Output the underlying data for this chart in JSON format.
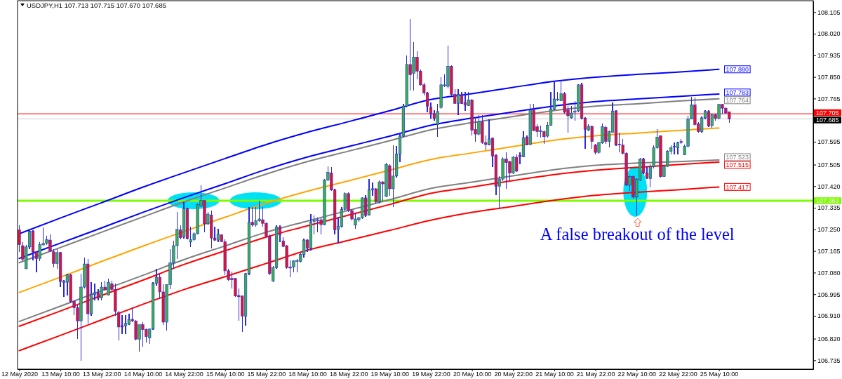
{
  "chart_data": {
    "type": "candlestick",
    "title": "USDJPY,H1 107.713 107.715 107.670 107.685",
    "categories": [
      "12 May 2020",
      null,
      null,
      null,
      null,
      null,
      null,
      null,
      null,
      null,
      null,
      null,
      "13 May 10:00",
      null,
      null,
      null,
      null,
      null,
      null,
      null,
      null,
      null,
      null,
      null,
      "13 May 22:00",
      null,
      null,
      null,
      null,
      null,
      null,
      null,
      null,
      null,
      null,
      null,
      "14 May 10:00",
      null,
      null,
      null,
      null,
      null,
      null,
      null,
      null,
      null,
      null,
      null,
      "14 May 22:00",
      null,
      null,
      null,
      null,
      null,
      null,
      null,
      null,
      null,
      null,
      null,
      "15 May 10:00",
      null,
      null,
      null,
      null,
      null,
      null,
      null,
      null,
      null,
      null,
      null,
      "15 May 22:00",
      null,
      null,
      null,
      null,
      null,
      null,
      null,
      null,
      null,
      null,
      null,
      "18 May 10:00",
      null,
      null,
      null,
      null,
      null,
      null,
      null,
      null,
      null,
      null,
      null,
      "18 May 22:00",
      null,
      null,
      null,
      null,
      null,
      null,
      null,
      null,
      null,
      null,
      null,
      "19 May 10:00",
      null,
      null,
      null,
      null,
      null,
      null,
      null,
      null,
      null,
      null,
      null,
      "19 May 22:00",
      null,
      null,
      null,
      null,
      null,
      null,
      null,
      null,
      null,
      null,
      null,
      "20 May 10:00",
      null,
      null,
      null,
      null,
      null,
      null,
      null,
      null,
      null,
      null,
      null,
      "20 May 22:00",
      null,
      null,
      null,
      null,
      null,
      null,
      null,
      null,
      null,
      null,
      null,
      "21 May 10:00",
      null,
      null,
      null,
      null,
      null,
      null,
      null,
      null,
      null,
      null,
      null,
      "21 May 22:00",
      null,
      null,
      null,
      null,
      null,
      null,
      null,
      null,
      null,
      null,
      null,
      "22 May 10:00",
      null,
      null,
      null,
      null,
      null,
      null,
      null,
      null,
      null,
      null,
      null,
      "22 May 22:00",
      null,
      null,
      null,
      null,
      null,
      null,
      null,
      null,
      null,
      null,
      null,
      "25 May 10:00",
      null,
      null,
      null,
      null,
      null,
      null,
      null,
      null,
      null,
      null,
      null,
      null,
      null,
      null,
      null,
      null,
      null,
      null,
      null,
      null,
      null,
      null,
      null,
      null,
      null,
      null,
      null
    ],
    "ohlc": [
      [
        107.248,
        107.267,
        107.162,
        107.19
      ],
      [
        107.186,
        107.2,
        107.124,
        107.133
      ],
      [
        107.095,
        107.19,
        107.095,
        107.181
      ],
      [
        107.181,
        107.253,
        107.171,
        107.243
      ],
      [
        107.243,
        107.248,
        107.128,
        107.162
      ],
      [
        107.162,
        107.162,
        107.081,
        107.135
      ],
      [
        107.135,
        107.2,
        107.124,
        107.19
      ],
      [
        107.189,
        107.257,
        107.186,
        107.195
      ],
      [
        107.195,
        107.224,
        107.19,
        107.21
      ],
      [
        107.208,
        107.229,
        107.162,
        107.164
      ],
      [
        107.162,
        107.171,
        107.1,
        107.116
      ],
      [
        107.116,
        107.171,
        107.095,
        107.159
      ],
      [
        107.159,
        107.162,
        107.023,
        107.045
      ],
      [
        107.042,
        107.052,
        106.985,
        107.047
      ],
      [
        107.042,
        107.076,
        106.99,
        107.071
      ],
      [
        107.071,
        107.076,
        106.961,
        106.966
      ],
      [
        106.966,
        106.971,
        106.914,
        106.942
      ],
      [
        106.942,
        106.952,
        106.818,
        106.89
      ],
      [
        106.89,
        107.076,
        106.732,
        107.023
      ],
      [
        107.023,
        107.138,
        107.019,
        107.114
      ],
      [
        107.114,
        107.133,
        106.88,
        106.918
      ],
      [
        106.918,
        107.042,
        106.909,
        106.995
      ],
      [
        106.995,
        107.038,
        106.971,
        107.001
      ],
      [
        107.001,
        107.014,
        106.971,
        106.979
      ],
      [
        106.98,
        107.042,
        106.971,
        107.023
      ],
      [
        107.023,
        107.047,
        107.009,
        107.012
      ],
      [
        106.992,
        107.057,
        106.99,
        107.042
      ],
      [
        107.036,
        107.047,
        107.009,
        107.014
      ],
      [
        107.014,
        107.038,
        106.909,
        106.928
      ],
      [
        106.923,
        106.928,
        106.813,
        106.866
      ],
      [
        106.871,
        106.914,
        106.837,
        106.866
      ],
      [
        106.871,
        106.914,
        106.837,
        106.88
      ],
      [
        106.877,
        106.918,
        106.875,
        106.896
      ],
      [
        106.896,
        106.942,
        106.885,
        106.89
      ],
      [
        106.89,
        106.894,
        106.813,
        106.818
      ],
      [
        106.818,
        106.875,
        106.77,
        106.875
      ],
      [
        106.875,
        106.885,
        106.789,
        106.856
      ],
      [
        106.856,
        106.861,
        106.804,
        106.828
      ],
      [
        106.823,
        106.861,
        106.799,
        106.858
      ],
      [
        106.858,
        107.042,
        106.856,
        107.038
      ],
      [
        107.038,
        107.095,
        107.028,
        107.062
      ],
      [
        107.062,
        107.076,
        106.976,
        107.004
      ],
      [
        107.004,
        107.033,
        106.875,
        106.885
      ],
      [
        106.885,
        107.033,
        106.851,
        107.033
      ],
      [
        107.033,
        107.171,
        107.014,
        107.119
      ],
      [
        107.119,
        107.205,
        107.095,
        107.186
      ],
      [
        107.186,
        107.319,
        107.133,
        107.25
      ],
      [
        107.248,
        107.267,
        107.21,
        107.217
      ],
      [
        107.221,
        107.358,
        107.214,
        107.332
      ],
      [
        107.332,
        107.334,
        107.21,
        107.214
      ],
      [
        107.2,
        107.262,
        107.181,
        107.21
      ],
      [
        107.21,
        107.238,
        107.205,
        107.233
      ],
      [
        107.233,
        107.353,
        107.229,
        107.348
      ],
      [
        107.343,
        107.424,
        107.338,
        107.364
      ],
      [
        107.364,
        107.364,
        107.238,
        107.272
      ],
      [
        107.272,
        107.319,
        107.267,
        107.31
      ],
      [
        107.307,
        107.324,
        107.176,
        107.216
      ],
      [
        107.216,
        107.262,
        107.205,
        107.208
      ],
      [
        107.208,
        107.253,
        107.2,
        107.231
      ],
      [
        107.229,
        107.231,
        107.2,
        107.202
      ],
      [
        107.202,
        107.21,
        107.071,
        107.087
      ],
      [
        107.087,
        107.095,
        107.047,
        107.052
      ],
      [
        107.057,
        107.085,
        107.019,
        107.052
      ],
      [
        107.057,
        107.059,
        106.985,
        106.988
      ],
      [
        106.99,
        107.019,
        106.89,
        106.985
      ],
      [
        106.988,
        106.99,
        106.847,
        106.909
      ],
      [
        106.909,
        107.078,
        106.871,
        107.076
      ],
      [
        107.076,
        107.338,
        107.071,
        107.278
      ],
      [
        107.278,
        107.338,
        107.262,
        107.267
      ],
      [
        107.267,
        107.338,
        107.262,
        107.284
      ],
      [
        107.284,
        107.364,
        107.281,
        107.291
      ],
      [
        107.288,
        107.338,
        107.262,
        107.274
      ],
      [
        107.274,
        107.276,
        107.219,
        107.224
      ],
      [
        107.224,
        107.229,
        107.071,
        107.076
      ],
      [
        107.047,
        107.105,
        107.042,
        107.1
      ],
      [
        107.1,
        107.267,
        107.095,
        107.259
      ],
      [
        107.259,
        107.267,
        107.2,
        107.229
      ],
      [
        107.205,
        107.219,
        107.181,
        107.183
      ],
      [
        107.186,
        107.19,
        107.095,
        107.1
      ],
      [
        107.102,
        107.128,
        107.062,
        107.098
      ],
      [
        107.102,
        107.128,
        107.081,
        107.126
      ],
      [
        107.124,
        107.135,
        107.081,
        107.128
      ],
      [
        107.124,
        107.162,
        107.119,
        107.152
      ],
      [
        107.152,
        107.214,
        107.138,
        107.208
      ],
      [
        107.208,
        107.21,
        107.162,
        107.176
      ],
      [
        107.176,
        107.31,
        107.167,
        107.278
      ],
      [
        107.281,
        107.305,
        107.229,
        107.286
      ],
      [
        107.283,
        107.296,
        107.238,
        107.288
      ],
      [
        107.288,
        107.296,
        107.229,
        107.269
      ],
      [
        107.269,
        107.448,
        107.267,
        107.444
      ],
      [
        107.444,
        107.498,
        107.439,
        107.475
      ],
      [
        107.472,
        107.496,
        107.401,
        107.405
      ],
      [
        107.405,
        107.41,
        107.229,
        107.248
      ],
      [
        107.25,
        107.296,
        107.195,
        107.262
      ],
      [
        107.262,
        107.338,
        107.257,
        107.329
      ],
      [
        107.329,
        107.396,
        107.324,
        107.391
      ],
      [
        107.391,
        107.396,
        107.319,
        107.324
      ],
      [
        107.324,
        107.329,
        107.286,
        107.291
      ],
      [
        107.267,
        107.315,
        107.253,
        107.291
      ],
      [
        107.288,
        107.3,
        107.281,
        107.296
      ],
      [
        107.296,
        107.377,
        107.291,
        107.374
      ],
      [
        107.374,
        107.386,
        107.3,
        107.305
      ],
      [
        107.307,
        107.448,
        107.305,
        107.405
      ],
      [
        107.405,
        107.434,
        107.381,
        107.41
      ],
      [
        107.41,
        107.412,
        107.353,
        107.358
      ],
      [
        107.358,
        107.444,
        107.353,
        107.437
      ],
      [
        107.437,
        107.441,
        107.362,
        107.429
      ],
      [
        107.38,
        107.513,
        107.377,
        107.506
      ],
      [
        107.501,
        107.506,
        107.381,
        107.41
      ],
      [
        107.41,
        107.582,
        107.338,
        107.46
      ],
      [
        107.46,
        107.577,
        107.453,
        107.546
      ],
      [
        107.546,
        107.63,
        107.515,
        107.617
      ],
      [
        107.617,
        107.744,
        107.615,
        107.735
      ],
      [
        107.735,
        107.935,
        107.73,
        107.899
      ],
      [
        107.899,
        108.079,
        107.797,
        107.859
      ],
      [
        107.864,
        107.988,
        107.797,
        107.928
      ],
      [
        107.928,
        107.95,
        107.84,
        107.873
      ],
      [
        107.873,
        107.878,
        107.816,
        107.819
      ],
      [
        107.819,
        107.826,
        107.778,
        107.787
      ],
      [
        107.787,
        107.792,
        107.711,
        107.735
      ],
      [
        107.73,
        107.749,
        107.687,
        107.706
      ],
      [
        107.706,
        107.72,
        107.678,
        107.687
      ],
      [
        107.663,
        107.744,
        107.615,
        107.714
      ],
      [
        107.73,
        107.848,
        107.725,
        107.819
      ],
      [
        107.815,
        107.859,
        107.811,
        107.819
      ],
      [
        107.813,
        107.974,
        107.806,
        107.892
      ],
      [
        107.892,
        107.897,
        107.778,
        107.781
      ],
      [
        107.781,
        107.802,
        107.744,
        107.746
      ],
      [
        107.746,
        107.802,
        107.701,
        107.781
      ],
      [
        107.778,
        107.792,
        107.744,
        107.746
      ],
      [
        107.749,
        107.792,
        107.716,
        107.74
      ],
      [
        107.737,
        107.792,
        107.735,
        107.759
      ],
      [
        107.759,
        107.763,
        107.62,
        107.641
      ],
      [
        107.643,
        107.692,
        107.596,
        107.625
      ],
      [
        107.625,
        107.699,
        107.62,
        107.673
      ],
      [
        107.673,
        107.701,
        107.587,
        107.592
      ],
      [
        107.592,
        107.62,
        107.563,
        107.584
      ],
      [
        107.584,
        107.682,
        107.582,
        107.606
      ],
      [
        107.609,
        107.611,
        107.496,
        107.539
      ],
      [
        107.542,
        107.544,
        107.386,
        107.42
      ],
      [
        107.42,
        107.46,
        107.329,
        107.448
      ],
      [
        107.448,
        107.534,
        107.441,
        107.527
      ],
      [
        107.527,
        107.553,
        107.41,
        107.513
      ],
      [
        107.517,
        107.52,
        107.439,
        107.472
      ],
      [
        107.472,
        107.539,
        107.467,
        107.534
      ],
      [
        107.534,
        107.544,
        107.477,
        107.479
      ],
      [
        107.542,
        107.553,
        107.506,
        107.536
      ],
      [
        107.536,
        107.635,
        107.534,
        107.611
      ],
      [
        107.613,
        107.62,
        107.582,
        107.584
      ],
      [
        107.584,
        107.744,
        107.582,
        107.72
      ],
      [
        107.72,
        107.744,
        107.635,
        107.639
      ],
      [
        107.654,
        107.663,
        107.615,
        107.635
      ],
      [
        107.635,
        107.658,
        107.611,
        107.639
      ],
      [
        107.635,
        107.639,
        107.587,
        107.615
      ],
      [
        107.617,
        107.673,
        107.611,
        107.66
      ],
      [
        107.66,
        107.792,
        107.658,
        107.723
      ],
      [
        107.723,
        107.835,
        107.72,
        107.763
      ],
      [
        107.759,
        107.792,
        107.754,
        107.763
      ],
      [
        107.756,
        107.837,
        107.754,
        107.784
      ],
      [
        107.784,
        107.792,
        107.706,
        107.711
      ],
      [
        107.72,
        107.735,
        107.63,
        107.697
      ],
      [
        107.689,
        107.735,
        107.687,
        107.708
      ],
      [
        107.711,
        107.754,
        107.678,
        107.716
      ],
      [
        107.716,
        107.821,
        107.711,
        107.819
      ],
      [
        107.819,
        107.826,
        107.682,
        107.687
      ],
      [
        107.687,
        107.692,
        107.568,
        107.644
      ],
      [
        107.641,
        107.663,
        107.635,
        107.656
      ],
      [
        107.656,
        107.658,
        107.568,
        107.596
      ],
      [
        107.582,
        107.587,
        107.544,
        107.553
      ],
      [
        107.553,
        107.596,
        107.549,
        107.592
      ],
      [
        107.59,
        107.666,
        107.587,
        107.654
      ],
      [
        107.651,
        107.658,
        107.587,
        107.596
      ],
      [
        107.596,
        107.639,
        107.572,
        107.635
      ],
      [
        107.632,
        107.749,
        107.63,
        107.716
      ],
      [
        107.716,
        107.718,
        107.577,
        107.582
      ],
      [
        107.585,
        107.63,
        107.553,
        107.582
      ],
      [
        107.582,
        107.606,
        107.544,
        107.549
      ],
      [
        107.549,
        107.553,
        107.42,
        107.424
      ],
      [
        107.424,
        107.463,
        107.401,
        107.458
      ],
      [
        107.458,
        107.463,
        107.372,
        107.377
      ],
      [
        107.377,
        107.45,
        107.305,
        107.448
      ],
      [
        107.444,
        107.53,
        107.439,
        107.527
      ],
      [
        107.527,
        107.53,
        107.467,
        107.472
      ],
      [
        107.472,
        107.496,
        107.448,
        107.453
      ],
      [
        107.45,
        107.506,
        107.415,
        107.496
      ],
      [
        107.496,
        107.582,
        107.491,
        107.571
      ],
      [
        107.571,
        107.644,
        107.568,
        107.613
      ],
      [
        107.618,
        107.62,
        107.453,
        107.458
      ],
      [
        107.458,
        107.501,
        107.456,
        107.498
      ],
      [
        107.498,
        107.563,
        107.496,
        107.558
      ],
      [
        107.558,
        107.582,
        107.544,
        107.572
      ],
      [
        107.574,
        107.592,
        107.544,
        107.577
      ],
      [
        107.571,
        107.596,
        107.544,
        107.59
      ],
      [
        107.596,
        107.606,
        107.587,
        107.592
      ],
      [
        107.544,
        107.584,
        107.542,
        107.577
      ],
      [
        107.577,
        107.697,
        107.572,
        107.685
      ],
      [
        107.685,
        107.771,
        107.682,
        107.74
      ],
      [
        107.74,
        107.768,
        107.658,
        107.663
      ],
      [
        107.666,
        107.673,
        107.63,
        107.635
      ],
      [
        107.635,
        107.695,
        107.632,
        107.689
      ],
      [
        107.689,
        107.72,
        107.682,
        107.714
      ],
      [
        107.714,
        107.72,
        107.654,
        107.658
      ],
      [
        107.658,
        107.706,
        107.649,
        107.701
      ],
      [
        107.701,
        107.706,
        107.678,
        107.687
      ],
      [
        107.687,
        107.744,
        107.682,
        107.742
      ],
      [
        107.742,
        107.744,
        107.706,
        107.727
      ],
      [
        107.727,
        107.73,
        107.706,
        107.708
      ],
      [
        107.713,
        107.715,
        107.67,
        107.685
      ],
      null,
      null,
      null,
      null,
      null,
      null,
      null,
      null,
      null,
      null,
      null,
      null,
      null,
      null,
      null,
      null,
      null,
      null,
      null,
      null,
      null,
      null,
      null,
      null
    ],
    "series": [
      {
        "type": "line",
        "color": "#0000ff",
        "x": [
          "12 May 2020",
          "13 May 10:00",
          "13 May 22:00",
          "14 May 10:00",
          "14 May 22:00",
          "15 May 10:00",
          "15 May 22:00",
          "18 May 10:00",
          "18 May 22:00",
          "19 May 10:00",
          "19 May 22:00",
          "20 May 10:00",
          "20 May 22:00",
          "21 May 10:00",
          "21 May 22:00",
          "22 May 10:00",
          "22 May 22:00",
          "25 May 10:00"
        ],
        "values": [
          107.233,
          107.295,
          107.355,
          107.416,
          107.473,
          107.529,
          107.584,
          107.632,
          107.674,
          107.717,
          107.761,
          107.784,
          107.809,
          107.833,
          107.849,
          107.86,
          107.869,
          107.88
        ],
        "value_labels": [
          null,
          null,
          null,
          null,
          null,
          null,
          null,
          null,
          null,
          null,
          null,
          null,
          null,
          null,
          null,
          null,
          null,
          "107.880"
        ]
      },
      {
        "type": "line",
        "color": "#0000ff",
        "x": [
          "12 May 2020",
          "13 May 10:00",
          "13 May 22:00",
          "14 May 10:00",
          "14 May 22:00",
          "15 May 10:00",
          "15 May 22:00",
          "18 May 10:00",
          "18 May 22:00",
          "19 May 10:00",
          "19 May 22:00",
          "20 May 10:00",
          "20 May 22:00",
          "21 May 10:00",
          "21 May 22:00",
          "22 May 10:00",
          "22 May 22:00",
          "25 May 10:00"
        ],
        "values": [
          107.136,
          107.196,
          107.256,
          107.317,
          107.375,
          107.43,
          107.486,
          107.535,
          107.576,
          107.617,
          107.66,
          107.688,
          107.712,
          107.736,
          107.753,
          107.763,
          107.773,
          107.783
        ],
        "value_labels": [
          null,
          null,
          null,
          null,
          null,
          null,
          null,
          null,
          null,
          null,
          null,
          null,
          null,
          null,
          null,
          null,
          null,
          "107.783"
        ]
      },
      {
        "type": "line",
        "color": "#808080",
        "x": [
          "12 May 2020",
          "13 May 10:00",
          "13 May 22:00",
          "14 May 10:00",
          "14 May 22:00",
          "15 May 10:00",
          "15 May 22:00",
          "18 May 10:00",
          "18 May 22:00",
          "19 May 10:00",
          "19 May 22:00",
          "20 May 10:00",
          "20 May 22:00",
          "21 May 10:00",
          "21 May 22:00",
          "22 May 10:00",
          "22 May 22:00",
          "25 May 10:00"
        ],
        "values": [
          107.119,
          107.179,
          107.239,
          107.299,
          107.358,
          107.413,
          107.468,
          107.517,
          107.558,
          107.599,
          107.642,
          107.67,
          107.694,
          107.718,
          107.735,
          107.744,
          107.755,
          107.764
        ],
        "value_labels": [
          null,
          null,
          null,
          null,
          null,
          null,
          null,
          null,
          null,
          null,
          null,
          null,
          null,
          null,
          null,
          null,
          null,
          "107.764"
        ]
      },
      {
        "type": "line",
        "color": "#ffa500",
        "x": [
          "12 May 2020",
          "13 May 10:00",
          "13 May 22:00",
          "14 May 10:00",
          "15 May 10:00",
          "15 May 22:00",
          "18 May 10:00",
          "18 May 22:00",
          "19 May 10:00",
          "19 May 22:00",
          "20 May 10:00",
          "20 May 22:00",
          "21 May 10:00",
          "21 May 22:00",
          "22 May 10:00",
          "22 May 22:00",
          "25 May 10:00"
        ],
        "values": [
          107.002,
          107.062,
          107.124,
          107.184,
          107.298,
          107.353,
          107.4,
          107.441,
          107.483,
          107.525,
          107.551,
          107.576,
          107.601,
          107.618,
          107.629,
          107.639,
          107.649
        ]
      },
      {
        "type": "line",
        "color": "#808080",
        "x": [
          "12 May 2020",
          "13 May 10:00",
          "13 May 22:00",
          "14 May 10:00",
          "14 May 22:00",
          "15 May 10:00",
          "15 May 22:00",
          "18 May 10:00",
          "18 May 22:00",
          "19 May 10:00",
          "19 May 22:00",
          "20 May 10:00",
          "20 May 22:00",
          "21 May 10:00",
          "21 May 22:00",
          "22 May 10:00",
          "22 May 22:00",
          "25 May 10:00"
        ],
        "values": [
          106.888,
          106.948,
          107.009,
          107.069,
          107.131,
          107.185,
          107.239,
          107.283,
          107.325,
          107.367,
          107.411,
          107.436,
          107.461,
          107.485,
          107.502,
          107.511,
          107.517,
          107.523
        ],
        "value_labels": [
          null,
          null,
          null,
          null,
          null,
          null,
          null,
          null,
          null,
          null,
          null,
          null,
          null,
          null,
          null,
          null,
          null,
          "107.523"
        ]
      },
      {
        "type": "line",
        "color": "#ff0000",
        "x": [
          "12 May 2020",
          "13 May 10:00",
          "13 May 22:00",
          "14 May 10:00",
          "14 May 22:00",
          "15 May 10:00",
          "15 May 22:00",
          "18 May 10:00",
          "18 May 22:00",
          "19 May 10:00",
          "19 May 22:00",
          "20 May 10:00",
          "20 May 22:00",
          "21 May 10:00",
          "21 May 22:00",
          "22 May 10:00",
          "22 May 22:00",
          "25 May 10:00"
        ],
        "values": [
          106.869,
          106.929,
          106.99,
          107.05,
          107.112,
          107.166,
          107.22,
          107.264,
          107.306,
          107.348,
          107.392,
          107.417,
          107.442,
          107.466,
          107.483,
          107.494,
          107.505,
          107.515
        ],
        "value_labels": [
          null,
          null,
          null,
          null,
          null,
          null,
          null,
          null,
          null,
          null,
          null,
          null,
          null,
          null,
          null,
          null,
          null,
          "107.515"
        ]
      },
      {
        "type": "line",
        "color": "#ff0000",
        "x": [
          "12 May 2020",
          "13 May 10:00",
          "13 May 22:00",
          "14 May 10:00",
          "14 May 22:00",
          "15 May 10:00",
          "15 May 22:00",
          "18 May 10:00",
          "18 May 22:00",
          "19 May 10:00",
          "19 May 22:00",
          "20 May 10:00",
          "20 May 22:00",
          "21 May 10:00",
          "21 May 22:00",
          "22 May 10:00",
          "22 May 22:00",
          "25 May 10:00"
        ],
        "values": [
          106.773,
          106.833,
          106.894,
          106.955,
          107.013,
          107.064,
          107.116,
          107.168,
          107.207,
          107.246,
          107.286,
          107.317,
          107.341,
          107.365,
          107.384,
          107.396,
          107.406,
          107.417
        ],
        "value_labels": [
          null,
          null,
          null,
          null,
          null,
          null,
          null,
          null,
          null,
          null,
          null,
          null,
          null,
          null,
          null,
          null,
          null,
          "107.417"
        ]
      }
    ],
    "ylim": [
      106.7,
      108.15
    ],
    "yticks": [
      108.105,
      {
        "value": 108.02,
        "label": "108.020"
      },
      107.935,
      {
        "value": 107.85,
        "label": "107.850"
      },
      107.765,
      107.595,
      107.505,
      {
        "value": 107.42,
        "label": "107.420"
      },
      107.335,
      {
        "value": 107.25,
        "label": "107.250"
      },
      107.165,
      {
        "value": 107.08,
        "label": "107.080"
      },
      106.995,
      {
        "value": 106.91,
        "label": "106.910"
      },
      {
        "value": 106.82,
        "label": "106.820"
      },
      106.735
    ],
    "ref_lines": [
      {
        "axis": "y",
        "value": 107.705,
        "label": "107.705",
        "color": "#ff0000"
      },
      {
        "axis": "y",
        "value": 107.685,
        "label": "107.685",
        "color": "#c8c8c8"
      },
      {
        "axis": "y",
        "value": 107.363,
        "label": "107.363",
        "color": "#7cfc00"
      }
    ],
    "annotations": [
      "A false breakout of the level"
    ]
  }
}
